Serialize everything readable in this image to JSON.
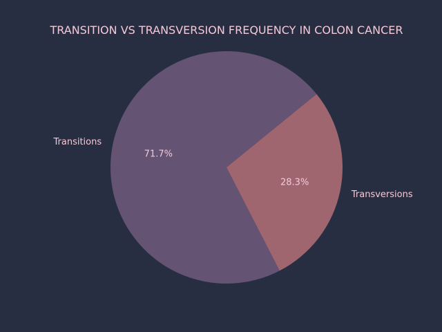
{
  "chart_data": {
    "type": "pie",
    "title": "TRANSITION VS TRANSVERSION FREQUENCY IN COLON CANCER",
    "categories": [
      "Transitions",
      "Transversions"
    ],
    "values": [
      71.7,
      28.3
    ],
    "value_labels": [
      "71.7%",
      "28.3%"
    ],
    "colors": [
      "#645373",
      "#a06670"
    ],
    "text_color": "#f5c9d8",
    "background_color": "#282e42",
    "start_angle_deg": 39.1,
    "direction": "counterclockwise",
    "legend": "none"
  }
}
